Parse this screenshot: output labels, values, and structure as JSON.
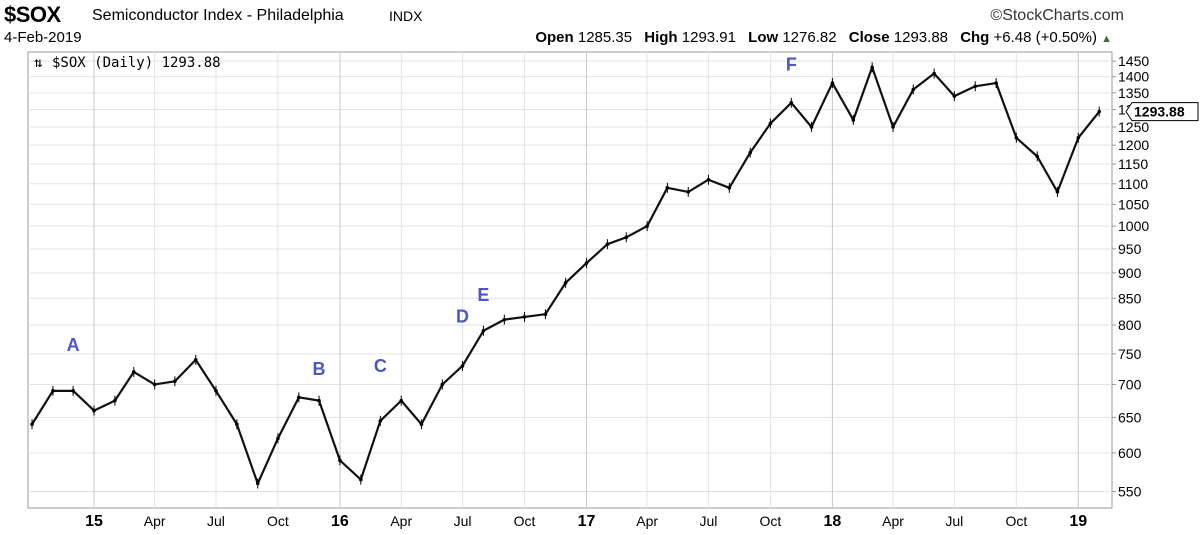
{
  "header": {
    "symbol": "$SOX",
    "name": "Semiconductor Index - Philadelphia",
    "exchange": "INDX",
    "brand": "StockCharts.com",
    "date": "4-Feb-2019",
    "open_label": "Open",
    "open": "1285.35",
    "high_label": "High",
    "high": "1293.91",
    "low_label": "Low",
    "low": "1276.82",
    "close_label": "Close",
    "close": "1293.88",
    "chg_label": "Chg",
    "chg": "+6.48 (+0.50%)"
  },
  "chart_data": {
    "type": "line",
    "legend": "$SOX (Daily) 1293.88",
    "last_value_label": "1293.88",
    "y_scale": "log",
    "ylim": [
      530,
      1480
    ],
    "y_ticks": [
      550,
      600,
      650,
      700,
      750,
      800,
      850,
      900,
      950,
      1000,
      1050,
      1100,
      1150,
      1200,
      1250,
      1300,
      1350,
      1400,
      1450
    ],
    "x_ticks": [
      {
        "label": "15",
        "date": "2015-01",
        "bold": true
      },
      {
        "label": "Apr",
        "date": "2015-04"
      },
      {
        "label": "Jul",
        "date": "2015-07"
      },
      {
        "label": "Oct",
        "date": "2015-10"
      },
      {
        "label": "16",
        "date": "2016-01",
        "bold": true
      },
      {
        "label": "Apr",
        "date": "2016-04"
      },
      {
        "label": "Jul",
        "date": "2016-07"
      },
      {
        "label": "Oct",
        "date": "2016-10"
      },
      {
        "label": "17",
        "date": "2017-01",
        "bold": true
      },
      {
        "label": "Apr",
        "date": "2017-04"
      },
      {
        "label": "Jul",
        "date": "2017-07"
      },
      {
        "label": "Oct",
        "date": "2017-10"
      },
      {
        "label": "18",
        "date": "2018-01",
        "bold": true
      },
      {
        "label": "Apr",
        "date": "2018-04"
      },
      {
        "label": "Jul",
        "date": "2018-07"
      },
      {
        "label": "Oct",
        "date": "2018-10"
      },
      {
        "label": "19",
        "date": "2019-01",
        "bold": true
      }
    ],
    "annotations": [
      {
        "label": "A",
        "date": "2014-12",
        "y": 755
      },
      {
        "label": "B",
        "date": "2015-12",
        "y": 715
      },
      {
        "label": "C",
        "date": "2016-03",
        "y": 720
      },
      {
        "label": "D",
        "date": "2016-07",
        "y": 805
      },
      {
        "label": "E",
        "date": "2016-08",
        "y": 845
      },
      {
        "label": "F",
        "date": "2017-11",
        "y": 1420
      }
    ],
    "series": [
      {
        "points": [
          [
            "2014-10",
            640
          ],
          [
            "2014-11",
            690
          ],
          [
            "2014-12",
            690
          ],
          [
            "2015-01",
            660
          ],
          [
            "2015-02",
            675
          ],
          [
            "2015-03",
            720
          ],
          [
            "2015-04",
            700
          ],
          [
            "2015-05",
            705
          ],
          [
            "2015-06",
            740
          ],
          [
            "2015-07",
            690
          ],
          [
            "2015-08",
            640
          ],
          [
            "2015-09",
            560
          ],
          [
            "2015-10",
            620
          ],
          [
            "2015-11",
            680
          ],
          [
            "2015-12",
            675
          ],
          [
            "2016-01",
            590
          ],
          [
            "2016-02",
            565
          ],
          [
            "2016-03",
            645
          ],
          [
            "2016-04",
            675
          ],
          [
            "2016-05",
            640
          ],
          [
            "2016-06",
            700
          ],
          [
            "2016-07",
            730
          ],
          [
            "2016-08",
            790
          ],
          [
            "2016-09",
            810
          ],
          [
            "2016-10",
            815
          ],
          [
            "2016-11",
            820
          ],
          [
            "2016-12",
            880
          ],
          [
            "2017-01",
            920
          ],
          [
            "2017-02",
            960
          ],
          [
            "2017-03",
            975
          ],
          [
            "2017-04",
            1000
          ],
          [
            "2017-05",
            1090
          ],
          [
            "2017-06",
            1080
          ],
          [
            "2017-07",
            1110
          ],
          [
            "2017-08",
            1090
          ],
          [
            "2017-09",
            1180
          ],
          [
            "2017-10",
            1260
          ],
          [
            "2017-11",
            1320
          ],
          [
            "2017-12",
            1250
          ],
          [
            "2018-01",
            1380
          ],
          [
            "2018-02",
            1270
          ],
          [
            "2018-03",
            1430
          ],
          [
            "2018-04",
            1250
          ],
          [
            "2018-05",
            1360
          ],
          [
            "2018-06",
            1410
          ],
          [
            "2018-07",
            1340
          ],
          [
            "2018-08",
            1370
          ],
          [
            "2018-09",
            1380
          ],
          [
            "2018-10",
            1220
          ],
          [
            "2018-11",
            1170
          ],
          [
            "2018-12",
            1080
          ],
          [
            "2019-01",
            1220
          ],
          [
            "2019-02",
            1294
          ]
        ]
      }
    ]
  }
}
